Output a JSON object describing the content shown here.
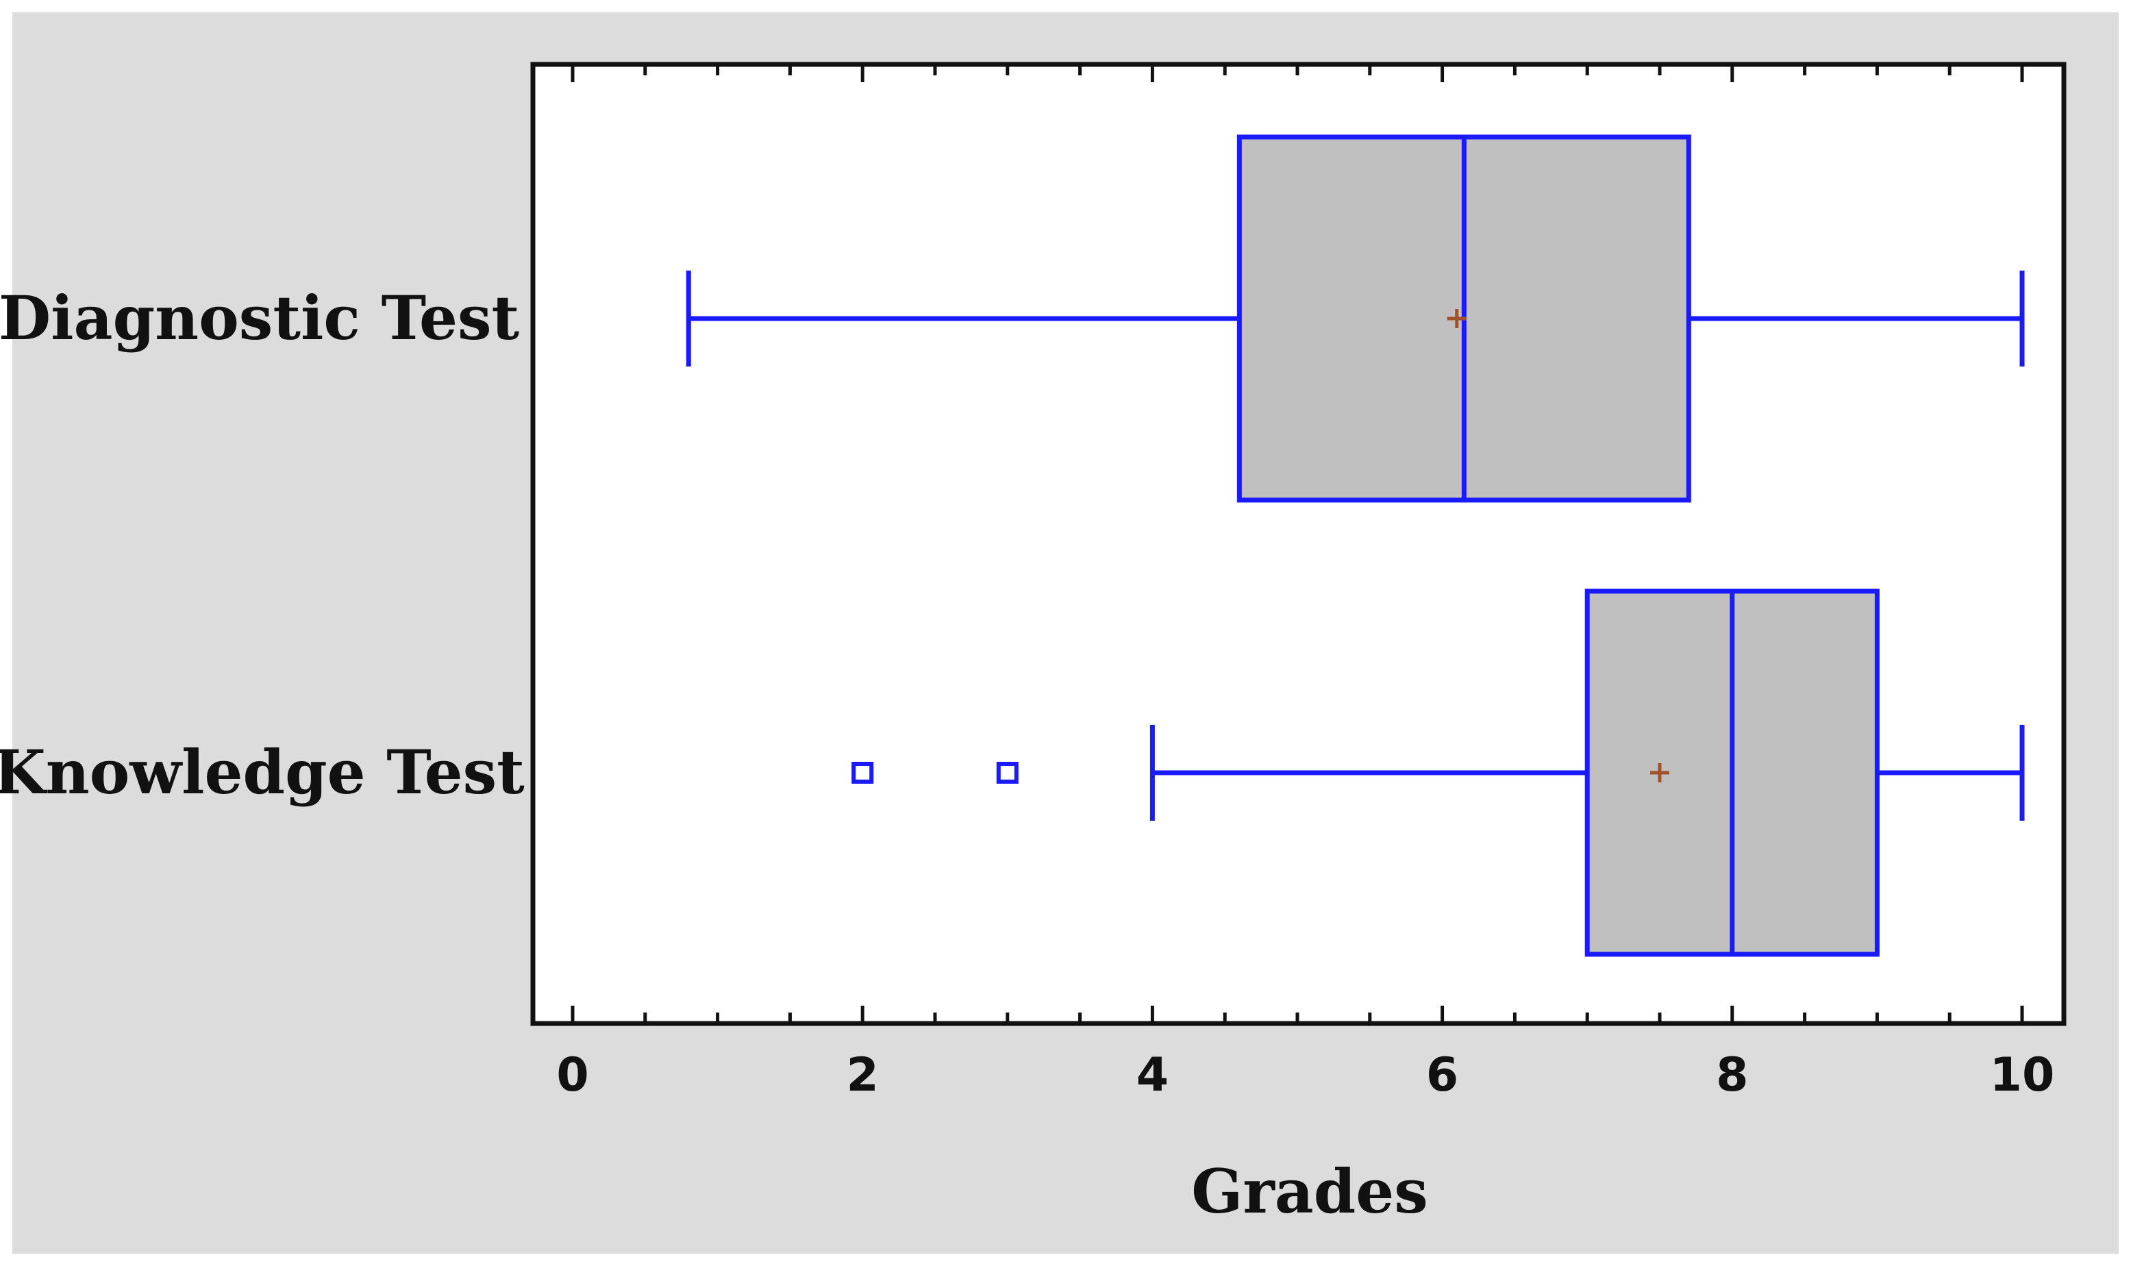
{
  "colors": {
    "page_background": "#dcdcdc",
    "plot_background": "#ffffff",
    "box_fill": "#c0c0c0",
    "box_stroke": "#1a1aff",
    "mean_marker": "#a0522d",
    "frame": "#111111"
  },
  "chart_data": {
    "type": "boxplot",
    "orientation": "horizontal",
    "title": "",
    "xlabel": "Grades",
    "ylabel": "",
    "xlim": [
      -0.6,
      10.6
    ],
    "x_ticks": [
      0,
      2,
      4,
      6,
      8,
      10
    ],
    "x_minor_step": 0.5,
    "grid": false,
    "legend": "none",
    "categories": [
      "Diagnostic Test",
      "Knowledge Test"
    ],
    "boxes": [
      {
        "category": "Diagnostic Test",
        "whisker_low": 0.8,
        "q1": 4.6,
        "median": 6.15,
        "q3": 7.7,
        "whisker_high": 10,
        "mean": 6.1,
        "outliers": []
      },
      {
        "category": "Knowledge Test",
        "whisker_low": 4,
        "q1": 7,
        "median": 8,
        "q3": 9,
        "whisker_high": 10,
        "mean": 7.5,
        "outliers": [
          2,
          3
        ]
      }
    ]
  }
}
